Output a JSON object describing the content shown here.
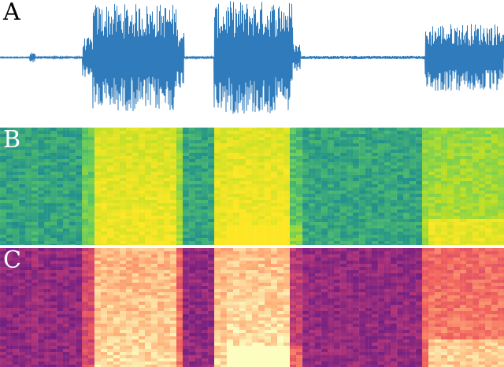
{
  "panels": {
    "a": {
      "label": "A",
      "type": "waveform",
      "color": "#2f7bbb"
    },
    "b": {
      "label": "B",
      "type": "spectrogram",
      "colormap": "viridis"
    },
    "c": {
      "label": "C",
      "type": "spectrogram",
      "colormap": "magma"
    }
  },
  "colors": {
    "waveform": "#2f7bbb",
    "viridis": [
      "#3b528b",
      "#21918c",
      "#5ec962",
      "#bddf26",
      "#fde725"
    ],
    "magma": [
      "#2c115f",
      "#721f81",
      "#b73779",
      "#f1605d",
      "#feb078",
      "#fcfdbf"
    ]
  }
}
